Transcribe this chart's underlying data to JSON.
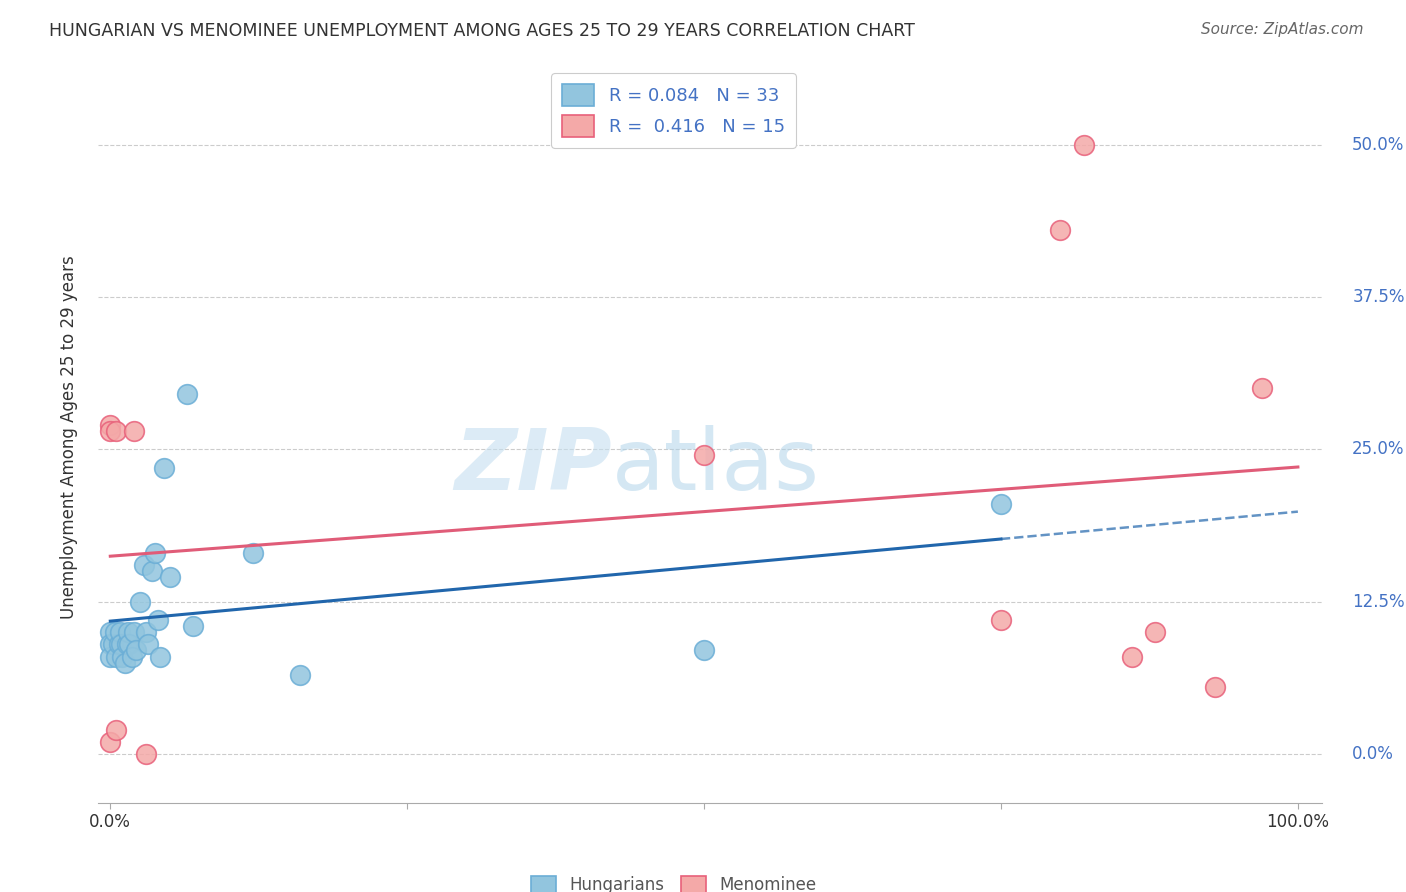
{
  "title": "HUNGARIAN VS MENOMINEE UNEMPLOYMENT AMONG AGES 25 TO 29 YEARS CORRELATION CHART",
  "source": "Source: ZipAtlas.com",
  "ylabel": "Unemployment Among Ages 25 to 29 years",
  "ytick_labels": [
    "0.0%",
    "12.5%",
    "25.0%",
    "37.5%",
    "50.0%"
  ],
  "ytick_values": [
    0.0,
    0.125,
    0.25,
    0.375,
    0.5
  ],
  "xtick_positions": [
    0.0,
    0.25,
    0.5,
    0.75,
    1.0
  ],
  "xtick_labels_show": [
    "0.0%",
    "",
    "",
    "",
    "100.0%"
  ],
  "xlim": [
    -0.01,
    1.02
  ],
  "ylim": [
    -0.04,
    0.56
  ],
  "hungarian_R": "0.084",
  "hungarian_N": "33",
  "menominee_R": "0.416",
  "menominee_N": "15",
  "hungarian_scatter_color": "#92c5de",
  "hungarian_edge_color": "#6baed6",
  "menominee_scatter_color": "#f4a9a8",
  "menominee_edge_color": "#e8607a",
  "trendline_color_hungarian": "#2166ac",
  "trendline_color_menominee": "#e05c78",
  "watermark_zip": "ZIP",
  "watermark_atlas": "atlas",
  "hungarian_x": [
    0.0,
    0.0,
    0.0,
    0.002,
    0.004,
    0.005,
    0.007,
    0.008,
    0.009,
    0.01,
    0.012,
    0.014,
    0.015,
    0.016,
    0.018,
    0.02,
    0.022,
    0.025,
    0.028,
    0.03,
    0.032,
    0.035,
    0.038,
    0.04,
    0.042,
    0.045,
    0.05,
    0.065,
    0.07,
    0.12,
    0.16,
    0.5,
    0.75
  ],
  "hungarian_y": [
    0.1,
    0.09,
    0.08,
    0.09,
    0.1,
    0.08,
    0.09,
    0.1,
    0.09,
    0.08,
    0.075,
    0.09,
    0.1,
    0.09,
    0.08,
    0.1,
    0.085,
    0.125,
    0.155,
    0.1,
    0.09,
    0.15,
    0.165,
    0.11,
    0.08,
    0.235,
    0.145,
    0.295,
    0.105,
    0.165,
    0.065,
    0.085,
    0.205
  ],
  "menominee_x": [
    0.0,
    0.0,
    0.0,
    0.005,
    0.005,
    0.02,
    0.03,
    0.5,
    0.75,
    0.8,
    0.82,
    0.86,
    0.88,
    0.93,
    0.97
  ],
  "menominee_y": [
    0.27,
    0.265,
    0.01,
    0.265,
    0.02,
    0.265,
    0.0,
    0.245,
    0.11,
    0.43,
    0.5,
    0.08,
    0.1,
    0.055,
    0.3
  ]
}
